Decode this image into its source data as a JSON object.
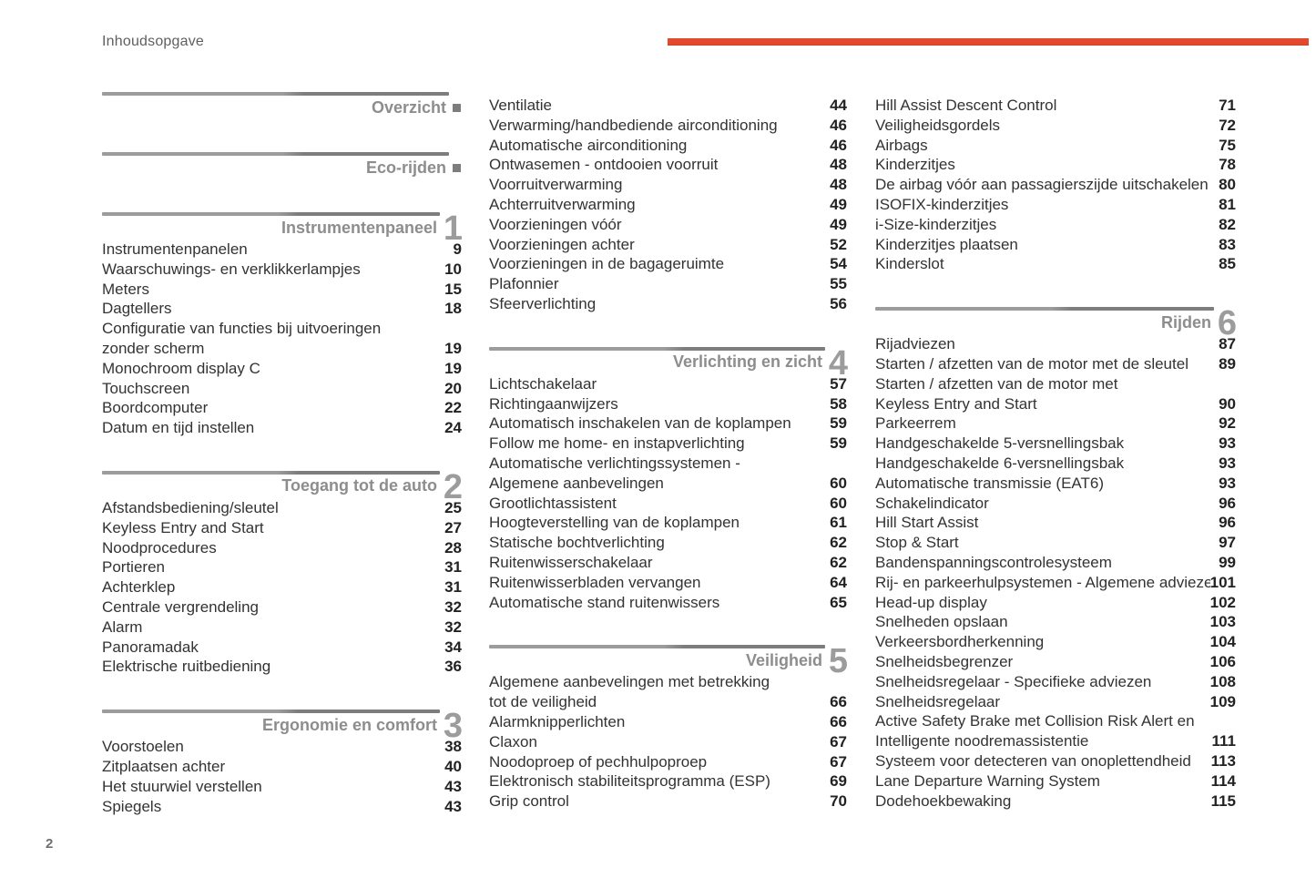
{
  "header": {
    "title": "Inhoudsopgave"
  },
  "footer": {
    "page_number": "2"
  },
  "colors": {
    "accent": "#e2492f",
    "section_gray": "#8d8d8d",
    "bar_gray": "#9c9c9c"
  },
  "toc": {
    "columns": [
      {
        "blocks": [
          {
            "kind": "section",
            "title": "Overzicht"
          },
          {
            "kind": "section",
            "title": "Eco-rijden"
          },
          {
            "kind": "chapter",
            "title": "Instrumentenpaneel",
            "number": "1"
          },
          {
            "kind": "entries",
            "rows": [
              {
                "label": "Instrumentenpanelen",
                "page": "9"
              },
              {
                "label": "Waarschuwings- en verklikkerlampjes",
                "page": "10"
              },
              {
                "label": "Meters",
                "page": "15"
              },
              {
                "label": "Dagtellers",
                "page": "18"
              },
              {
                "label": "Configuratie van functies bij uitvoeringen",
                "page": ""
              },
              {
                "label": "zonder scherm",
                "page": "19"
              },
              {
                "label": "Monochroom display C",
                "page": "19"
              },
              {
                "label": "Touchscreen",
                "page": "20"
              },
              {
                "label": "Boordcomputer",
                "page": "22"
              },
              {
                "label": "Datum en tijd instellen",
                "page": "24"
              }
            ]
          },
          {
            "kind": "chapter",
            "title": "Toegang tot de auto",
            "number": "2"
          },
          {
            "kind": "entries",
            "rows": [
              {
                "label": "Afstandsbediening/sleutel",
                "page": "25"
              },
              {
                "label": "Keyless Entry and Start",
                "page": "27"
              },
              {
                "label": "Noodprocedures",
                "page": "28"
              },
              {
                "label": "Portieren",
                "page": "31"
              },
              {
                "label": "Achterklep",
                "page": "31"
              },
              {
                "label": "Centrale vergrendeling",
                "page": "32"
              },
              {
                "label": "Alarm",
                "page": "32"
              },
              {
                "label": "Panoramadak",
                "page": "34"
              },
              {
                "label": "Elektrische ruitbediening",
                "page": "36"
              }
            ]
          },
          {
            "kind": "chapter",
            "title": "Ergonomie en comfort",
            "number": "3"
          },
          {
            "kind": "entries",
            "rows": [
              {
                "label": "Voorstoelen",
                "page": "38"
              },
              {
                "label": "Zitplaatsen achter",
                "page": "40"
              },
              {
                "label": "Het stuurwiel verstellen",
                "page": "43"
              },
              {
                "label": "Spiegels",
                "page": "43"
              }
            ]
          }
        ]
      },
      {
        "blocks": [
          {
            "kind": "entries",
            "rows": [
              {
                "label": "Ventilatie",
                "page": "44"
              },
              {
                "label": "Verwarming/handbediende airconditioning",
                "page": "46"
              },
              {
                "label": "Automatische airconditioning",
                "page": "46"
              },
              {
                "label": "Ontwasemen - ontdooien voorruit",
                "page": "48"
              },
              {
                "label": "Voorruitverwarming",
                "page": "48"
              },
              {
                "label": "Achterruitverwarming",
                "page": "49"
              },
              {
                "label": "Voorzieningen vóór",
                "page": "49"
              },
              {
                "label": "Voorzieningen achter",
                "page": "52"
              },
              {
                "label": "Voorzieningen in de bagageruimte",
                "page": "54"
              },
              {
                "label": "Plafonnier",
                "page": "55"
              },
              {
                "label": "Sfeerverlichting",
                "page": "56"
              }
            ]
          },
          {
            "kind": "chapter",
            "title": "Verlichting en zicht",
            "number": "4"
          },
          {
            "kind": "entries",
            "rows": [
              {
                "label": "Lichtschakelaar",
                "page": "57"
              },
              {
                "label": "Richtingaanwijzers",
                "page": "58"
              },
              {
                "label": "Automatisch inschakelen van de koplampen",
                "page": "59"
              },
              {
                "label": "Follow me home- en instapverlichting",
                "page": "59"
              },
              {
                "label": "Automatische verlichtingssystemen -",
                "page": ""
              },
              {
                "label": "Algemene aanbevelingen",
                "page": "60"
              },
              {
                "label": "Grootlichtassistent",
                "page": "60"
              },
              {
                "label": "Hoogteverstelling van de koplampen",
                "page": "61"
              },
              {
                "label": "Statische bochtverlichting",
                "page": "62"
              },
              {
                "label": "Ruitenwisserschakelaar",
                "page": "62"
              },
              {
                "label": "Ruitenwisserbladen vervangen",
                "page": "64"
              },
              {
                "label": "Automatische stand ruitenwissers",
                "page": "65"
              }
            ]
          },
          {
            "kind": "chapter",
            "title": "Veiligheid",
            "number": "5"
          },
          {
            "kind": "entries",
            "rows": [
              {
                "label": "Algemene aanbevelingen met betrekking",
                "page": ""
              },
              {
                "label": "tot de veiligheid",
                "page": "66"
              },
              {
                "label": "Alarmknipperlichten",
                "page": "66"
              },
              {
                "label": "Claxon",
                "page": "67"
              },
              {
                "label": "Noodoproep of pechhulpoproep",
                "page": "67"
              },
              {
                "label": "Elektronisch stabiliteitsprogramma (ESP)",
                "page": "69"
              },
              {
                "label": "Grip control",
                "page": "70"
              }
            ]
          }
        ]
      },
      {
        "blocks": [
          {
            "kind": "entries",
            "rows": [
              {
                "label": "Hill Assist Descent Control",
                "page": "71"
              },
              {
                "label": "Veiligheidsgordels",
                "page": "72"
              },
              {
                "label": "Airbags",
                "page": "75"
              },
              {
                "label": "Kinderzitjes",
                "page": "78"
              },
              {
                "label": "De airbag vóór aan passagierszijde uitschakelen",
                "page": "80"
              },
              {
                "label": "ISOFIX-kinderzitjes",
                "page": "81"
              },
              {
                "label": "i-Size-kinderzitjes",
                "page": "82"
              },
              {
                "label": "Kinderzitjes plaatsen",
                "page": "83"
              },
              {
                "label": "Kinderslot",
                "page": "85"
              }
            ]
          },
          {
            "kind": "chapter",
            "title": "Rijden",
            "number": "6"
          },
          {
            "kind": "entries",
            "rows": [
              {
                "label": "Rijadviezen",
                "page": "87"
              },
              {
                "label": "Starten / afzetten van de motor met de sleutel",
                "page": "89"
              },
              {
                "label": "Starten / afzetten van de motor met",
                "page": ""
              },
              {
                "label": "Keyless Entry and Start",
                "page": "90"
              },
              {
                "label": "Parkeerrem",
                "page": "92"
              },
              {
                "label": "Handgeschakelde 5-versnellingsbak",
                "page": "93"
              },
              {
                "label": "Handgeschakelde 6-versnellingsbak",
                "page": "93"
              },
              {
                "label": "Automatische transmissie (EAT6)",
                "page": "93"
              },
              {
                "label": "Schakelindicator",
                "page": "96"
              },
              {
                "label": "Hill Start Assist",
                "page": "96"
              },
              {
                "label": "Stop & Start",
                "page": "97"
              },
              {
                "label": "Bandenspanningscontrolesysteem",
                "page": "99"
              },
              {
                "label": "Rij- en parkeerhulpsystemen - Algemene adviezen",
                "page": "101"
              },
              {
                "label": "Head-up display",
                "page": "102"
              },
              {
                "label": "Snelheden opslaan",
                "page": "103"
              },
              {
                "label": "Verkeersbordherkenning",
                "page": "104"
              },
              {
                "label": "Snelheidsbegrenzer",
                "page": "106"
              },
              {
                "label": "Snelheidsregelaar - Specifieke adviezen",
                "page": "108"
              },
              {
                "label": "Snelheidsregelaar",
                "page": "109"
              },
              {
                "label": "Active Safety Brake met Collision Risk Alert en",
                "page": ""
              },
              {
                "label": "Intelligente noodremassistentie",
                "page": "111"
              },
              {
                "label": "Systeem voor detecteren van onoplettendheid",
                "page": "113"
              },
              {
                "label": "Lane Departure Warning System",
                "page": "114"
              },
              {
                "label": "Dodehoekbewaking",
                "page": "115"
              }
            ]
          }
        ]
      }
    ]
  }
}
